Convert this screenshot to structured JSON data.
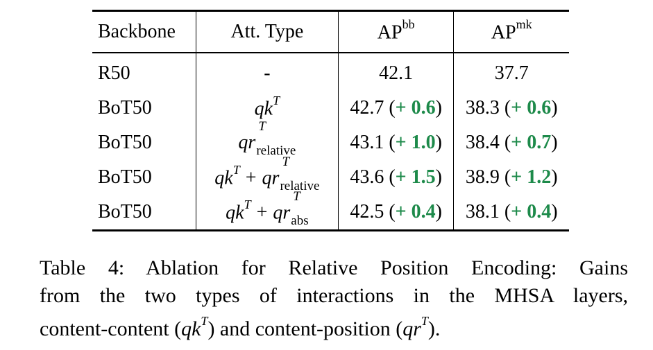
{
  "table": {
    "headers": {
      "backbone": "Backbone",
      "att_type": "Att. Type",
      "ap_bb_base": "AP",
      "ap_bb_sup": "bb",
      "ap_mk_base": "AP",
      "ap_mk_sup": "mk"
    },
    "math": {
      "q": "q",
      "k": "k",
      "r": "r",
      "T": "T",
      "plus": "+",
      "relative": "relative",
      "abs": "abs"
    },
    "rows": [
      {
        "backbone": "R50",
        "att_type": "-",
        "ap_bb": "42.1",
        "ap_mk": "37.7"
      },
      {
        "backbone": "BoT50",
        "att_type": "qk^T",
        "ap_bb": "42.7",
        "ap_bb_open": "(",
        "ap_bb_gain": "+ 0.6",
        "ap_bb_close": ")",
        "ap_mk": "38.3",
        "ap_mk_open": "(",
        "ap_mk_gain": "+ 0.6",
        "ap_mk_close": ")"
      },
      {
        "backbone": "BoT50",
        "att_type": "qr^T_relative",
        "ap_bb": "43.1",
        "ap_bb_open": "(",
        "ap_bb_gain": "+ 1.0",
        "ap_bb_close": ")",
        "ap_mk": "38.4",
        "ap_mk_open": "(",
        "ap_mk_gain": "+ 0.7",
        "ap_mk_close": ")"
      },
      {
        "backbone": "BoT50",
        "att_type": "qk^T + qr^T_relative",
        "ap_bb": "43.6",
        "ap_bb_open": "(",
        "ap_bb_gain": "+ 1.5",
        "ap_bb_close": ")",
        "ap_mk": "38.9",
        "ap_mk_open": "(",
        "ap_mk_gain": "+ 1.2",
        "ap_mk_close": ")"
      },
      {
        "backbone": "BoT50",
        "att_type": "qk^T + qr^T_abs",
        "ap_bb": "42.5",
        "ap_bb_open": "(",
        "ap_bb_gain": "+ 0.4",
        "ap_bb_close": ")",
        "ap_mk": "38.1",
        "ap_mk_open": "(",
        "ap_mk_gain": "+ 0.4",
        "ap_mk_close": ")"
      }
    ]
  },
  "caption": {
    "line1": "Table 4: Ablation for Relative Position Encoding: Gains",
    "line2": "from the two types of interactions in the MHSA layers,",
    "line3_a": "content-content (",
    "line3_b": ") and content-position (",
    "line3_c": ")."
  },
  "colors": {
    "gain": "#1d8a4a",
    "text": "#000000"
  }
}
